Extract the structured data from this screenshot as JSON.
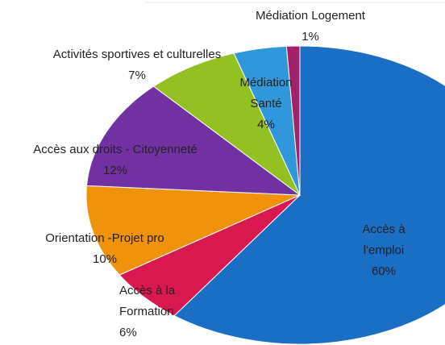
{
  "chart_data": {
    "type": "pie",
    "categories": [
      "Accès à l'emploi",
      "Accès à la Formation",
      "Orientation -Projet pro",
      "Accès aux droits - Citoyenneté",
      "Activités sportives et culturelles",
      "Médiation Santé",
      "Médiation Logement"
    ],
    "values": [
      60,
      6,
      10,
      12,
      7,
      4,
      1
    ],
    "value_labels": [
      "60%",
      "6%",
      "10%",
      "12%",
      "7%",
      "4%",
      "1%"
    ],
    "colors": [
      "#1a6fc4",
      "#d9184f",
      "#f0920c",
      "#7231a3",
      "#93c123",
      "#2f97da",
      "#a3206b"
    ]
  }
}
